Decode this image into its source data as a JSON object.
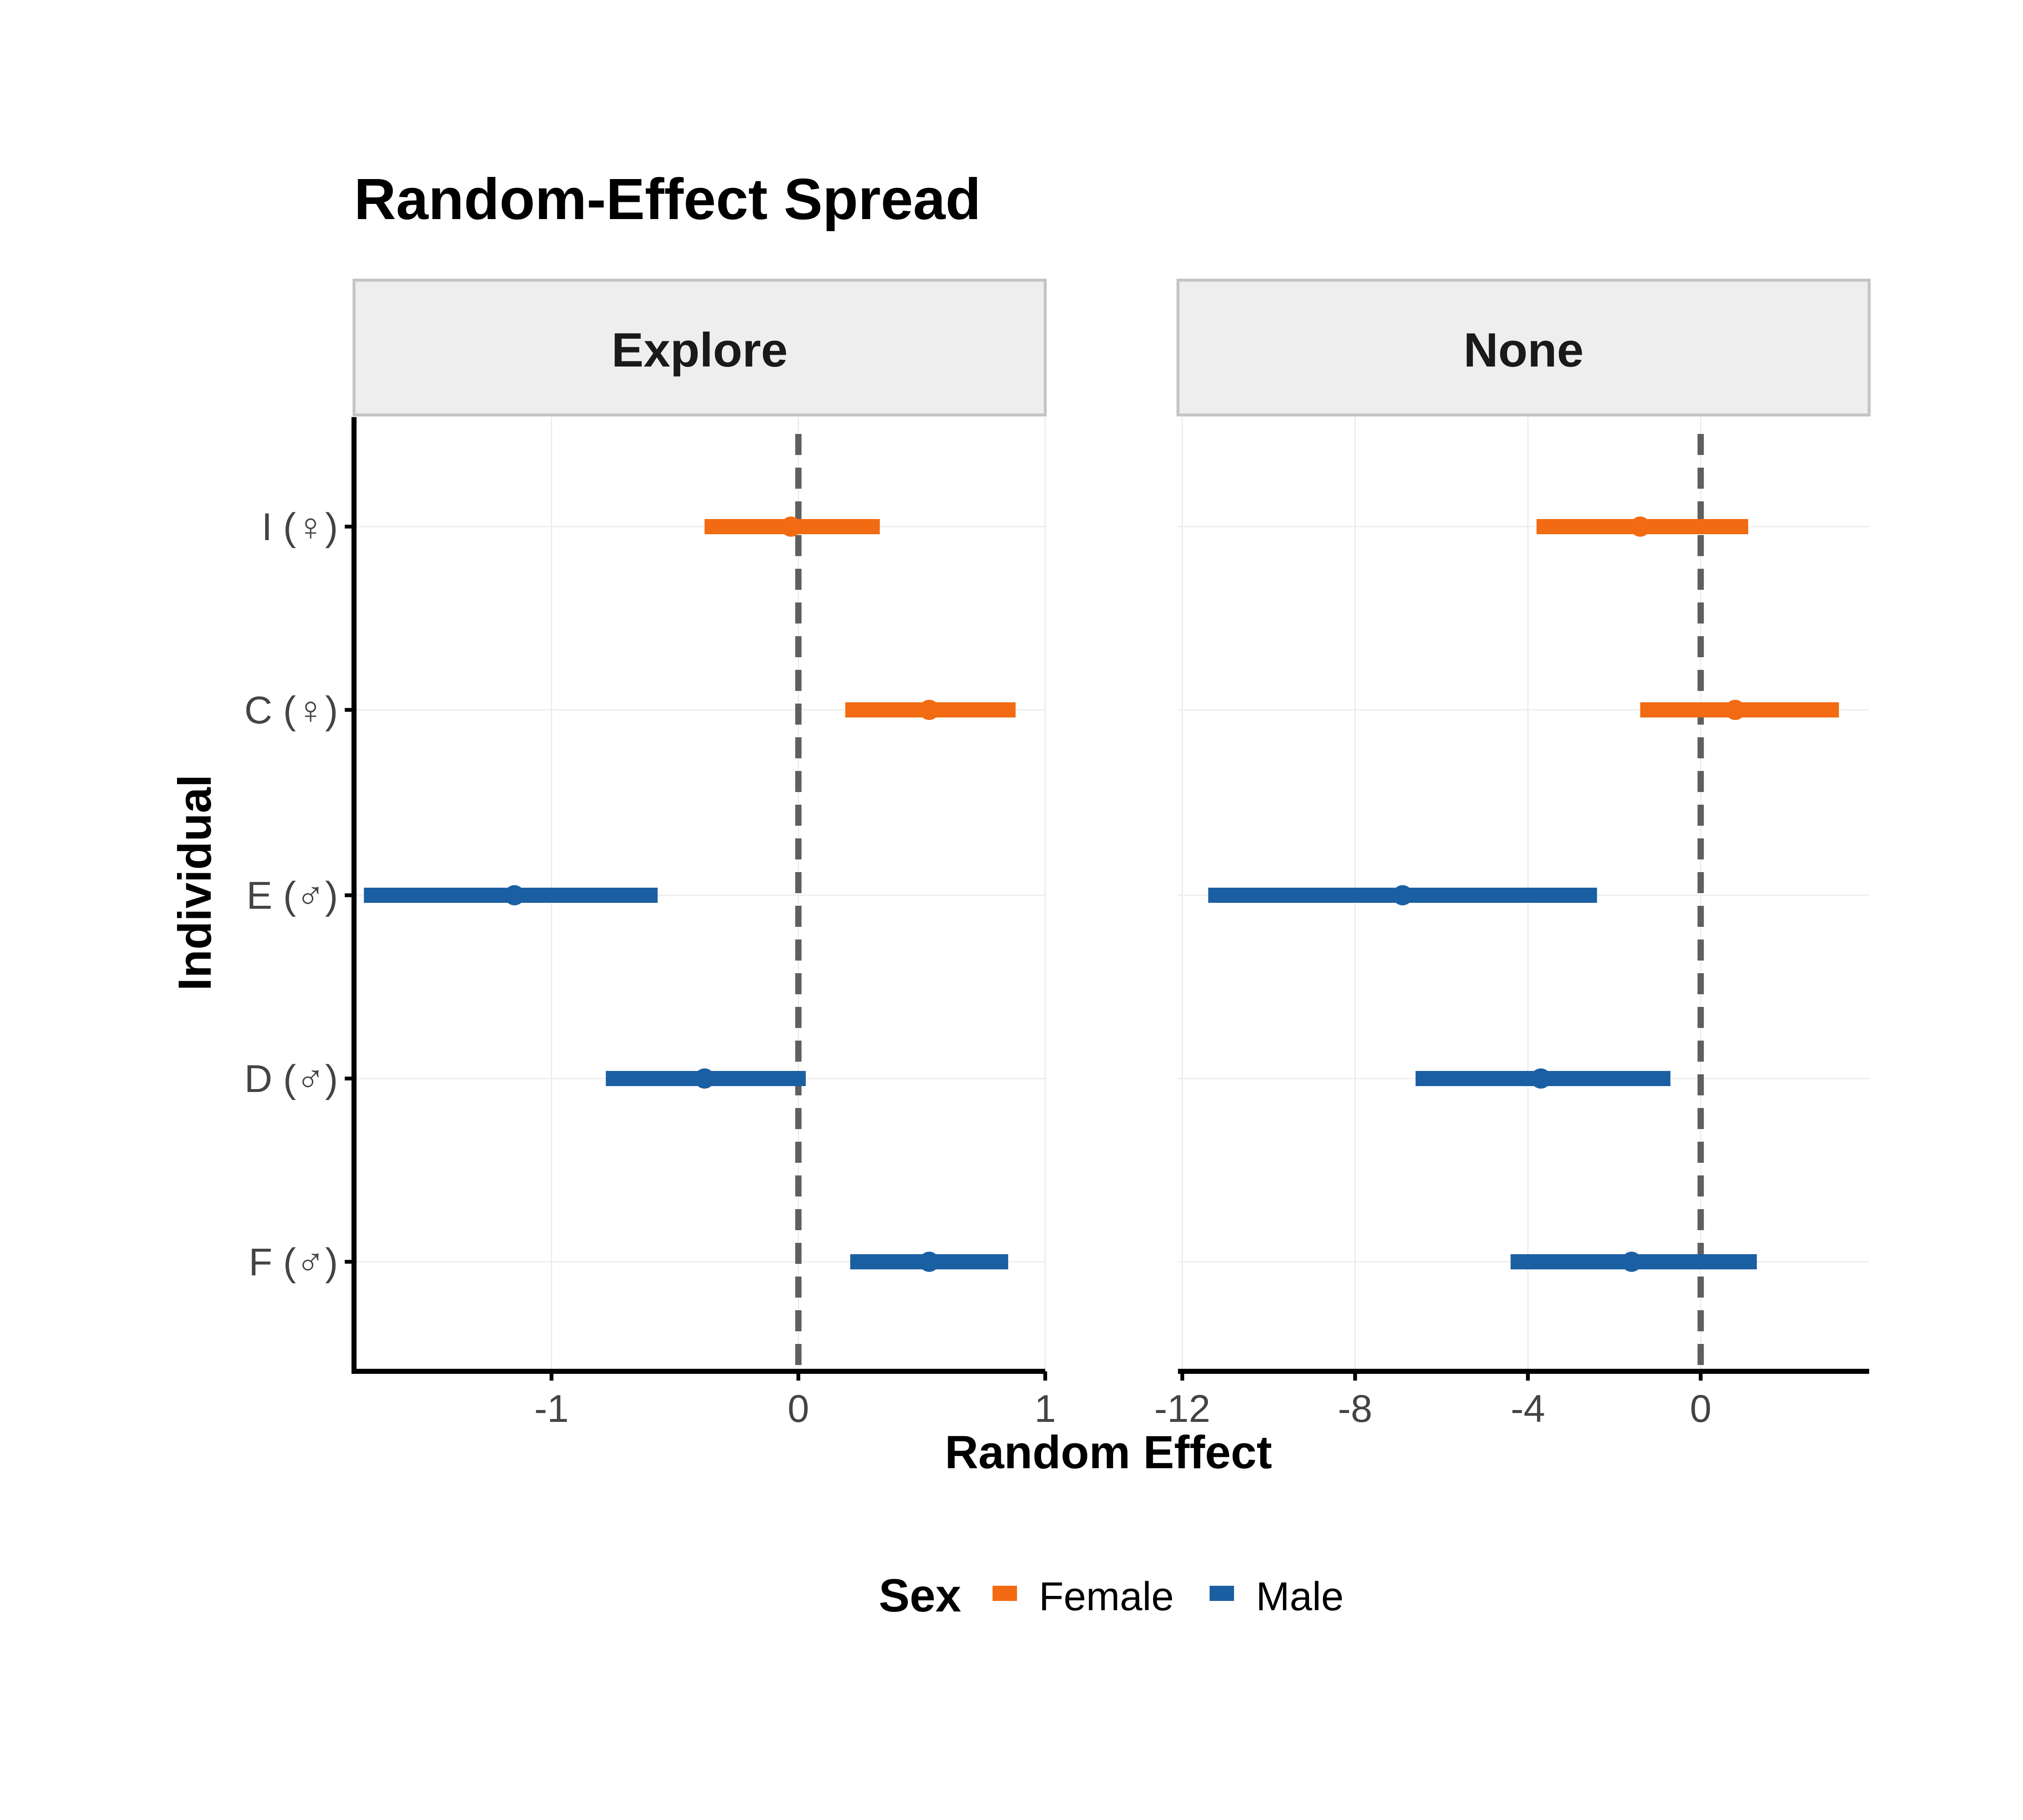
{
  "chart_data": {
    "type": "forest",
    "title": "Random-Effect Spread",
    "xlabel": "Random Effect",
    "ylabel": "Individual",
    "categories": [
      "I (♀)",
      "C (♀)",
      "E (♂)",
      "D (♂)",
      "F (♂)"
    ],
    "reference_line": 0,
    "legend": {
      "title": "Sex",
      "position": "bottom",
      "entries": [
        {
          "name": "Female",
          "color": "#f26a12"
        },
        {
          "name": "Male",
          "color": "#1b5fa3"
        }
      ]
    },
    "panels": [
      {
        "name": "Explore",
        "xlim": [
          -1.8,
          1
        ],
        "xticks": [
          -1,
          0,
          1
        ],
        "xtick_labels": [
          "-1",
          "0",
          "1"
        ],
        "points": [
          {
            "individual": "I (♀)",
            "sex": "Female",
            "estimate": -0.03,
            "lower": -0.38,
            "upper": 0.33
          },
          {
            "individual": "C (♀)",
            "sex": "Female",
            "estimate": 0.53,
            "lower": 0.19,
            "upper": 0.88
          },
          {
            "individual": "E (♂)",
            "sex": "Male",
            "estimate": -1.15,
            "lower": -1.76,
            "upper": -0.57
          },
          {
            "individual": "D (♂)",
            "sex": "Male",
            "estimate": -0.38,
            "lower": -0.78,
            "upper": 0.03
          },
          {
            "individual": "F (♂)",
            "sex": "Male",
            "estimate": 0.53,
            "lower": 0.21,
            "upper": 0.85
          }
        ]
      },
      {
        "name": "None",
        "xlim": [
          -12.1,
          3.9
        ],
        "xticks": [
          -12,
          -8,
          -4,
          0
        ],
        "xtick_labels": [
          "-12",
          "-8",
          "-4",
          "0"
        ],
        "points": [
          {
            "individual": "I (♀)",
            "sex": "Female",
            "estimate": -1.4,
            "lower": -3.8,
            "upper": 1.1
          },
          {
            "individual": "C (♀)",
            "sex": "Female",
            "estimate": 0.8,
            "lower": -1.4,
            "upper": 3.2
          },
          {
            "individual": "E (♂)",
            "sex": "Male",
            "estimate": -6.9,
            "lower": -11.4,
            "upper": -2.4
          },
          {
            "individual": "D (♂)",
            "sex": "Male",
            "estimate": -3.7,
            "lower": -6.6,
            "upper": -0.7
          },
          {
            "individual": "F (♂)",
            "sex": "Male",
            "estimate": -1.6,
            "lower": -4.4,
            "upper": 1.3
          }
        ]
      }
    ]
  }
}
